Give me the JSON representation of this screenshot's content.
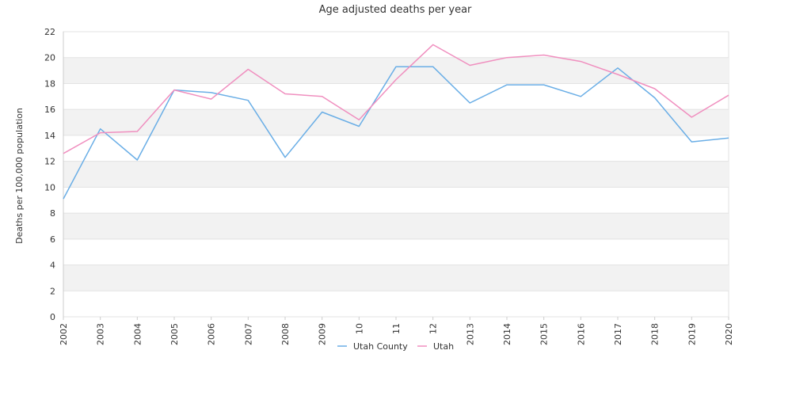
{
  "chart_data": {
    "type": "line",
    "title": "Age adjusted deaths per year",
    "xlabel": "",
    "ylabel": "Deaths per 100,000 population",
    "ylim": [
      0,
      22
    ],
    "yticks": [
      0,
      2,
      4,
      6,
      8,
      10,
      12,
      14,
      16,
      18,
      20,
      22
    ],
    "categories": [
      "2002",
      "2003",
      "2004",
      "2005",
      "2006",
      "2007",
      "2008",
      "2009",
      "10",
      "11",
      "12",
      "2013",
      "2014",
      "2015",
      "2016",
      "2017",
      "2018",
      "2019",
      "2020"
    ],
    "series": [
      {
        "name": "Utah County",
        "color": "#6aaee6",
        "values": [
          9.1,
          14.5,
          12.1,
          17.5,
          17.3,
          16.7,
          12.3,
          15.8,
          14.7,
          19.3,
          19.3,
          16.5,
          17.9,
          17.9,
          17.0,
          19.2,
          16.9,
          13.5,
          13.8
        ]
      },
      {
        "name": "Utah",
        "color": "#f08fbf",
        "values": [
          12.6,
          14.2,
          14.3,
          17.5,
          16.8,
          19.1,
          17.2,
          17.0,
          15.2,
          18.3,
          21.0,
          19.4,
          20.0,
          20.2,
          19.7,
          18.7,
          17.6,
          15.4,
          17.1
        ]
      }
    ],
    "grid": true,
    "gridbands": true,
    "legend": "bottom"
  }
}
